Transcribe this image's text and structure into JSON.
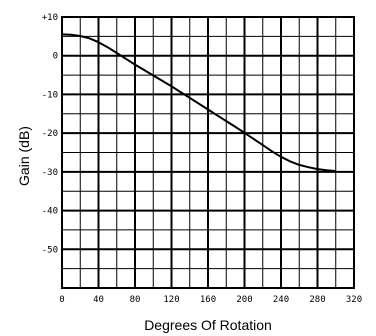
{
  "chart_data": {
    "type": "line",
    "title": "",
    "xlabel": "Degrees Of Rotation",
    "ylabel": "Gain (dB)",
    "xlim": [
      0,
      320
    ],
    "ylim": [
      -60,
      10
    ],
    "grid": true,
    "x_tick_labels": [
      "0",
      "40",
      "80",
      "120",
      "160",
      "200",
      "240",
      "280",
      "320"
    ],
    "y_tick_labels": [
      "+10",
      "0",
      "-10",
      "-20",
      "-30",
      "-40",
      "-50"
    ],
    "series": [
      {
        "x": [
          0,
          10,
          20,
          30,
          40,
          50,
          60,
          70,
          80,
          90,
          100,
          110,
          120,
          130,
          140,
          150,
          160,
          170,
          180,
          190,
          200,
          210,
          220,
          230,
          240,
          250,
          260,
          270,
          280,
          290,
          300
        ],
        "y": [
          5.5,
          5.4,
          5.1,
          4.5,
          3.5,
          2.2,
          0.7,
          -0.8,
          -2.3,
          -3.7,
          -5.1,
          -6.5,
          -7.9,
          -9.4,
          -10.9,
          -12.4,
          -13.9,
          -15.4,
          -16.9,
          -18.4,
          -19.9,
          -21.5,
          -23.1,
          -24.7,
          -26.1,
          -27.3,
          -28.2,
          -28.8,
          -29.3,
          -29.6,
          -29.8
        ]
      }
    ]
  }
}
